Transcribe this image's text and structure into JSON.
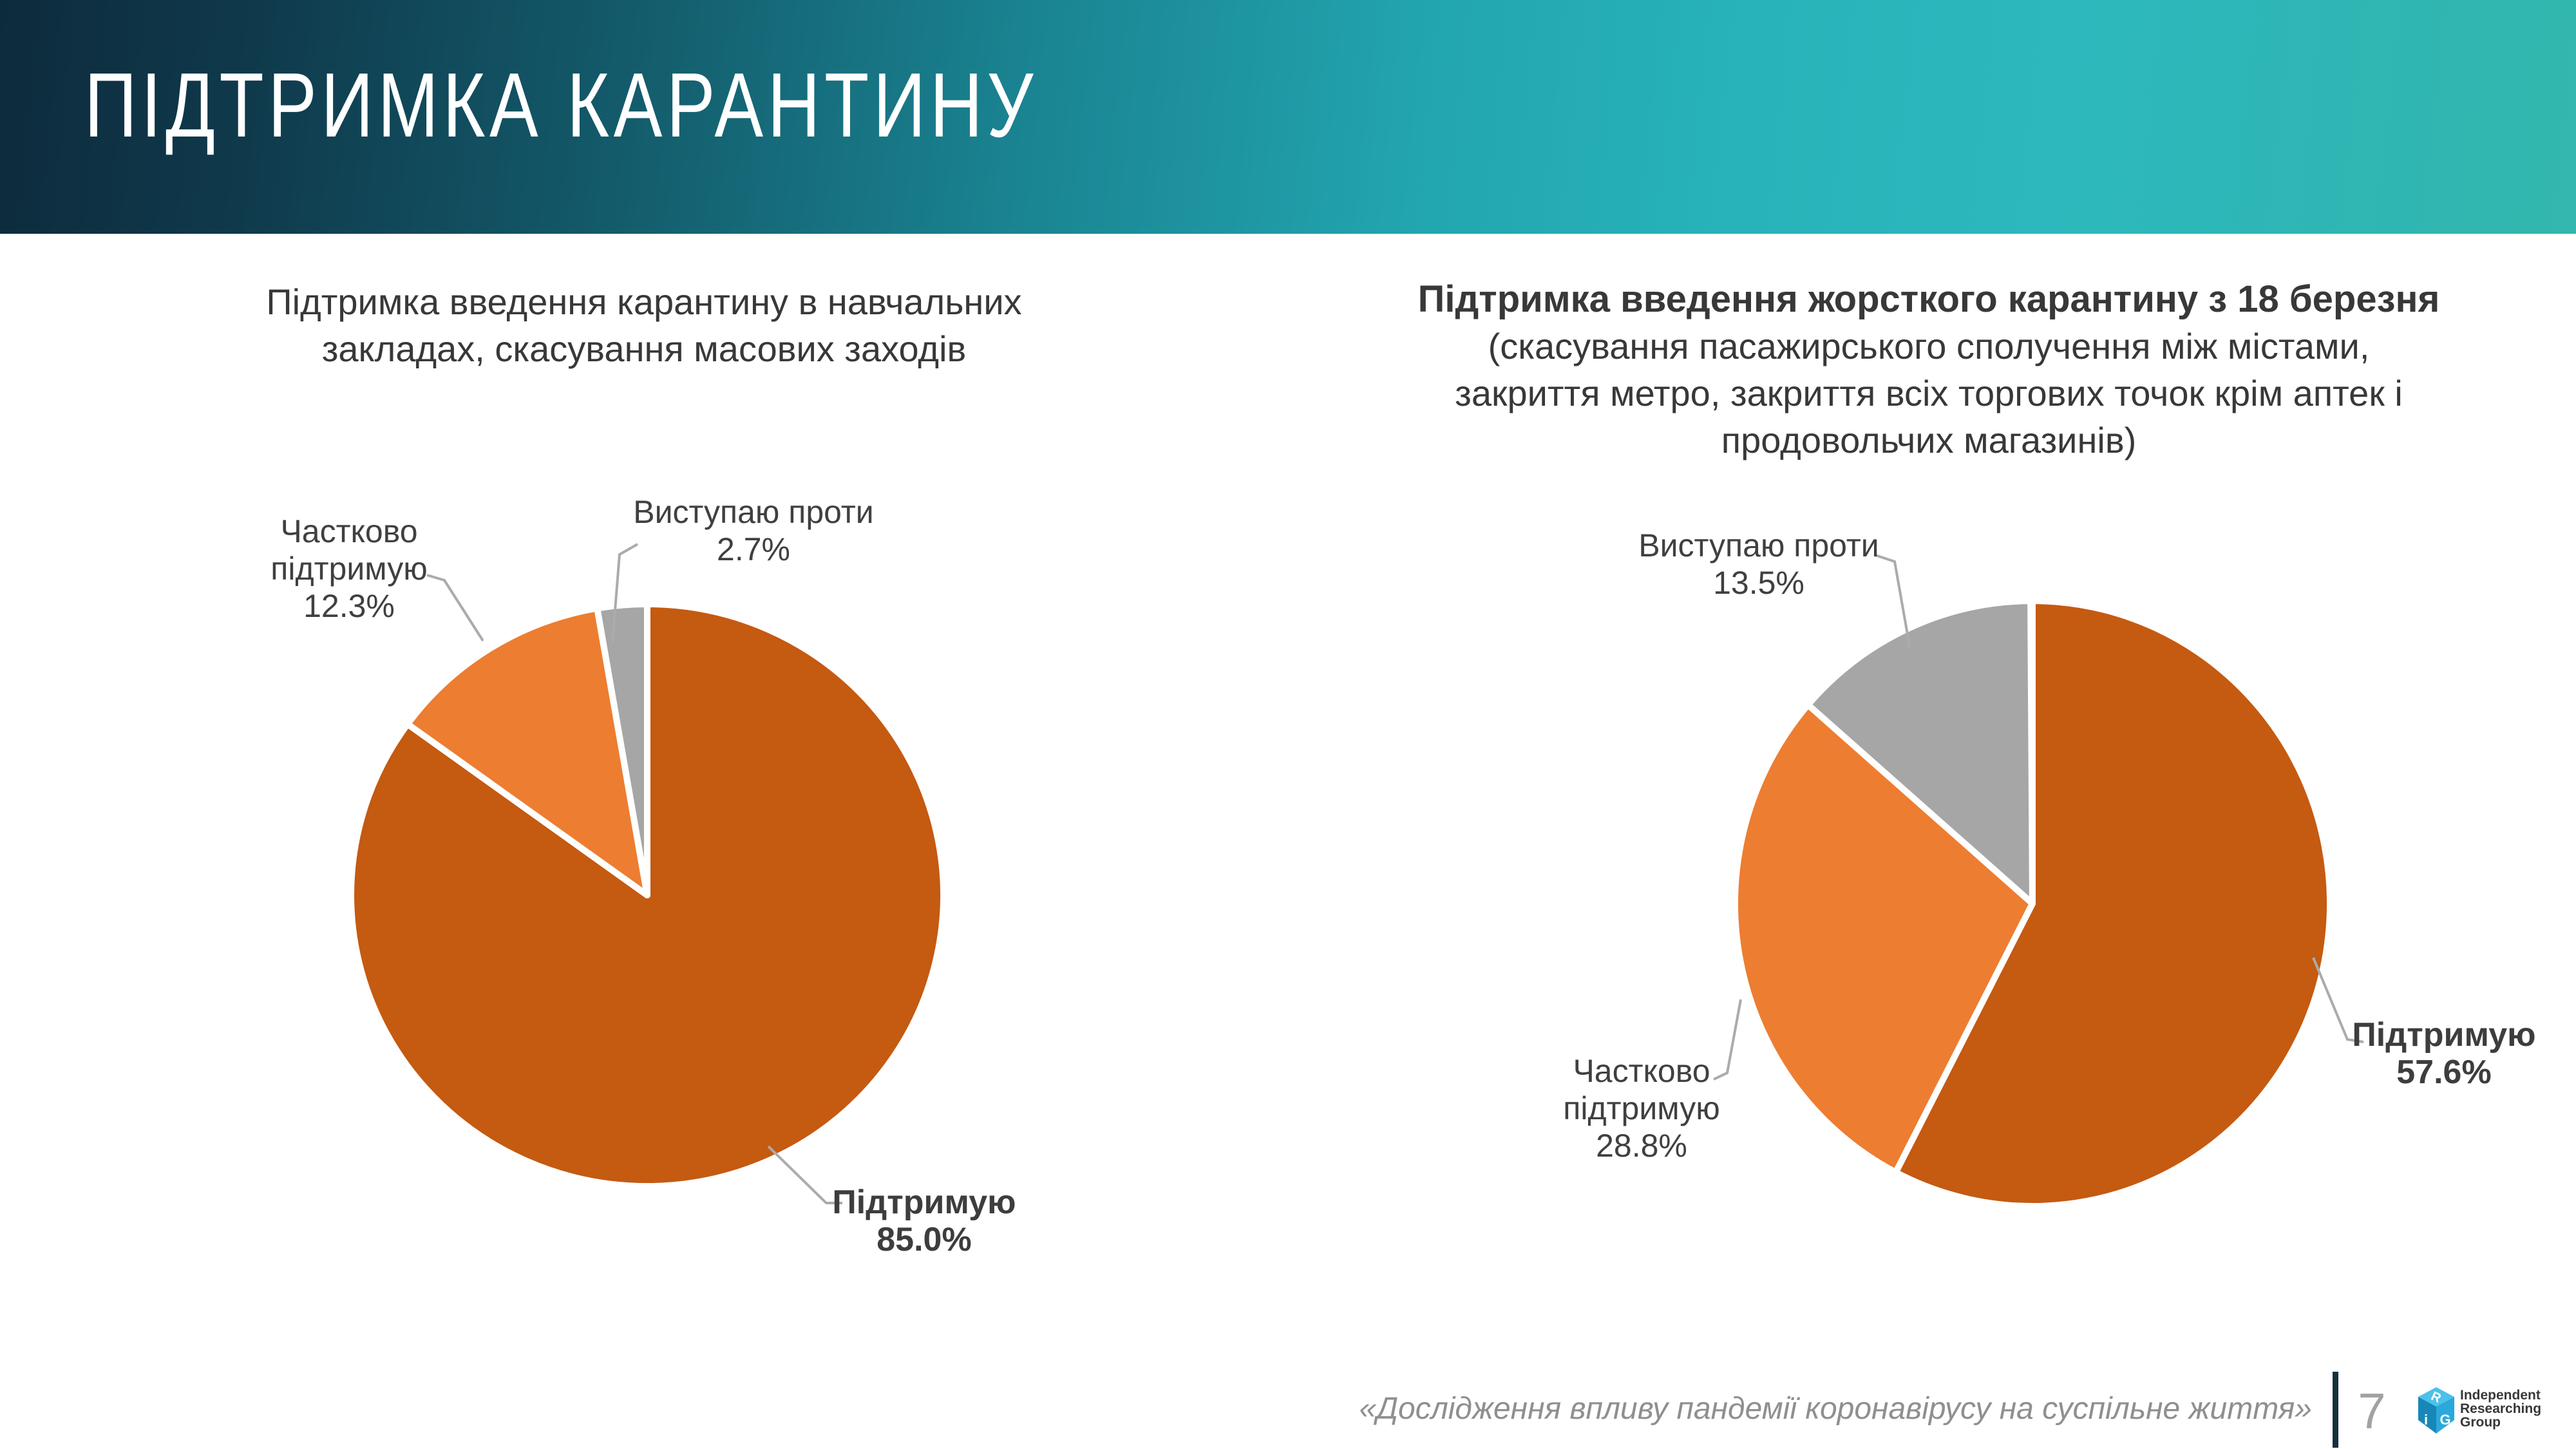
{
  "header": {
    "title": "ПІДТРИМКА КАРАНТИНУ"
  },
  "charts": [
    {
      "title_lines": [
        "Підтримка введення карантину в навчальних",
        "закладах, скасування масових заходів"
      ],
      "labels": {
        "partial": {
          "line1": "Частково",
          "line2": "підтримую",
          "pct": "12.3%"
        },
        "against": {
          "line1": "Виступаю проти",
          "pct": "2.7%"
        },
        "support": {
          "line1": "Підтримую",
          "pct": "85.0%"
        }
      }
    },
    {
      "title_lines": [
        "Підтримка введення жорсткого карантину з 18 березня",
        "(скасування пасажирського сполучення між містами,",
        "закриття метро, закриття всіх торгових точок крім аптек і",
        "продовольчих магазинів)"
      ],
      "labels": {
        "against": {
          "line1": "Виступаю проти",
          "pct": "13.5%"
        },
        "partial": {
          "line1": "Частково",
          "line2": "підтримую",
          "pct": "28.8%"
        },
        "support": {
          "line1": "Підтримую",
          "pct": "57.6%"
        }
      }
    }
  ],
  "chart_data": [
    {
      "type": "pie",
      "title": "Підтримка введення карантину в навчальних закладах, скасування масових заходів",
      "labels": [
        "Підтримую",
        "Частково підтримую",
        "Виступаю проти"
      ],
      "values": [
        85.0,
        12.3,
        2.7
      ],
      "colors": [
        "#C55A11",
        "#ED7D31",
        "#A6A6A6"
      ],
      "start_angle_deg": 0,
      "direction": "clockwise",
      "legend": "none"
    },
    {
      "type": "pie",
      "title": "Підтримка введення жорсткого карантину з 18 березня (скасування пасажирського сполучення між містами, закриття метро, закриття всіх торгових точок крім аптек і продовольчих магазинів)",
      "labels": [
        "Підтримую",
        "Частково підтримую",
        "Виступаю проти"
      ],
      "values": [
        57.6,
        28.8,
        13.5
      ],
      "colors": [
        "#C55A11",
        "#ED7D31",
        "#A6A6A6"
      ],
      "start_angle_deg": 0,
      "direction": "clockwise",
      "legend": "none"
    }
  ],
  "footer": {
    "citation": "«Дослідження впливу пандемії коронавірусу на суспільне життя»",
    "page_number": "7",
    "logo": {
      "cube_letters": [
        "R",
        "i",
        "G"
      ],
      "text_lines": [
        "Independent",
        "Researching",
        "Group"
      ]
    }
  },
  "colors": {
    "pie_support": "#C55A11",
    "pie_partial": "#ED7D31",
    "pie_against": "#A6A6A6",
    "leader_line": "#ABABAB",
    "label_text": "#404040",
    "divider": "#16303e"
  }
}
